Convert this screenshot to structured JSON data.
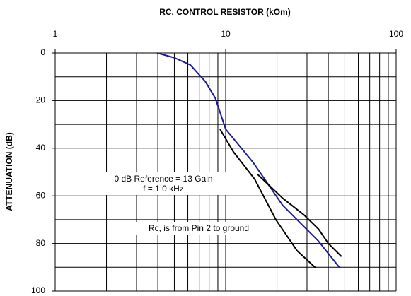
{
  "chart_data": {
    "type": "line",
    "title": "RC, CONTROL RESISTOR (kOm)",
    "y_label": "ATTENUATION (dB)",
    "x_scale": "log",
    "xlim": [
      1,
      100
    ],
    "xticks": [
      1,
      10,
      100
    ],
    "xminor": [
      2,
      3,
      4,
      5,
      6,
      7,
      8,
      9,
      20,
      30,
      40,
      50,
      60,
      70,
      80,
      90
    ],
    "ylim": [
      100,
      0
    ],
    "yticks": [
      0,
      20,
      40,
      60,
      80,
      100
    ],
    "yminor": [
      10,
      30,
      50,
      70,
      90
    ],
    "grid": true,
    "series": [
      {
        "color": "#1c1c96",
        "x": [
          3.96,
          5.0,
          6.2,
          7.6,
          8.7,
          10,
          14.5,
          21.6,
          35,
          47
        ],
        "values": [
          0,
          2,
          5,
          12,
          19,
          32,
          46,
          64,
          79,
          90.5
        ]
      },
      {
        "color": "#000000",
        "x": [
          9.27,
          11.1,
          14.8,
          19.7,
          26.2,
          34
        ],
        "values": [
          32,
          41.5,
          53,
          70,
          83,
          90.5
        ]
      },
      {
        "color": "#000000",
        "x": [
          15.4,
          21.6,
          28.8,
          35.1,
          40,
          47.8
        ],
        "values": [
          51,
          61,
          68,
          74,
          80,
          85.5
        ]
      }
    ],
    "annotations": [
      "0 dB Reference = 13 Gain",
      "f = 1.0 kHz",
      "Rc, is from Pin 2 to ground"
    ]
  }
}
